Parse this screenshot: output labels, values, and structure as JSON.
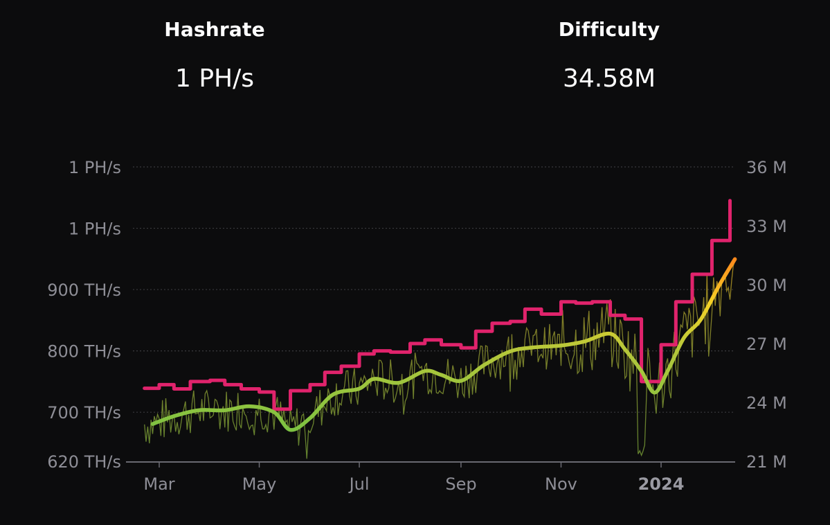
{
  "stats": {
    "hashrate": {
      "label": "Hashrate",
      "value": "1 PH/s"
    },
    "difficulty": {
      "label": "Difficulty",
      "value": "34.58M"
    }
  },
  "colors": {
    "background": "#0c0c0d",
    "hashrate_line": "#e0236c",
    "difficulty_low": "#7dc242",
    "difficulty_mid": "#f5d327",
    "difficulty_high": "#ff7a1a",
    "raw_low": "#6e8f32",
    "raw_high": "#c8961a",
    "grid": "#3a3a3e",
    "axis": "#6a6a72",
    "tick_text": "#8e8e96"
  },
  "chart_data": {
    "type": "line",
    "title": "",
    "grid": "horizontal-dotted",
    "x_range": [
      "2023-02-20",
      "2024-02-15"
    ],
    "x_ticks": [
      {
        "label": "Mar",
        "date": "2023-03-01",
        "bold": false
      },
      {
        "label": "May",
        "date": "2023-05-01",
        "bold": false
      },
      {
        "label": "Jul",
        "date": "2023-07-01",
        "bold": false
      },
      {
        "label": "Sep",
        "date": "2023-09-01",
        "bold": false
      },
      {
        "label": "Nov",
        "date": "2023-11-01",
        "bold": false
      },
      {
        "label": "2024",
        "date": "2024-01-01",
        "bold": true
      }
    ],
    "left_axis": {
      "unit": "TH/s",
      "range": [
        620,
        1100
      ],
      "ticks": [
        {
          "value": 1100,
          "label": "1 PH/s"
        },
        {
          "value": 1000,
          "label": "1 PH/s"
        },
        {
          "value": 900,
          "label": "900 TH/s"
        },
        {
          "value": 800,
          "label": "800 TH/s"
        },
        {
          "value": 700,
          "label": "700 TH/s"
        },
        {
          "value": 620,
          "label": "620 TH/s"
        }
      ]
    },
    "right_axis": {
      "unit": "M",
      "range": [
        21,
        36
      ],
      "ticks": [
        {
          "value": 36,
          "label": "36 M"
        },
        {
          "value": 33,
          "label": "33 M"
        },
        {
          "value": 30,
          "label": "30 M"
        },
        {
          "value": 27,
          "label": "27 M"
        },
        {
          "value": 24,
          "label": "24 M"
        },
        {
          "value": 21,
          "label": "21 M"
        }
      ]
    },
    "series": [
      {
        "axis": "left",
        "style": "step",
        "color": "#e0236c",
        "points": [
          [
            "2023-02-20",
            739
          ],
          [
            "2023-03-01",
            745
          ],
          [
            "2023-03-10",
            738
          ],
          [
            "2023-03-20",
            750
          ],
          [
            "2023-04-01",
            752
          ],
          [
            "2023-04-10",
            745
          ],
          [
            "2023-04-20",
            738
          ],
          [
            "2023-05-01",
            733
          ],
          [
            "2023-05-10",
            705
          ],
          [
            "2023-05-20",
            735
          ],
          [
            "2023-06-01",
            745
          ],
          [
            "2023-06-10",
            765
          ],
          [
            "2023-06-20",
            775
          ],
          [
            "2023-07-01",
            795
          ],
          [
            "2023-07-10",
            800
          ],
          [
            "2023-07-20",
            798
          ],
          [
            "2023-08-01",
            812
          ],
          [
            "2023-08-10",
            818
          ],
          [
            "2023-08-20",
            810
          ],
          [
            "2023-09-01",
            805
          ],
          [
            "2023-09-10",
            832
          ],
          [
            "2023-09-20",
            845
          ],
          [
            "2023-10-01",
            848
          ],
          [
            "2023-10-10",
            868
          ],
          [
            "2023-10-20",
            860
          ],
          [
            "2023-11-01",
            880
          ],
          [
            "2023-11-10",
            878
          ],
          [
            "2023-11-20",
            880
          ],
          [
            "2023-12-01",
            858
          ],
          [
            "2023-12-10",
            852
          ],
          [
            "2023-12-20",
            750
          ],
          [
            "2024-01-01",
            810
          ],
          [
            "2024-01-10",
            880
          ],
          [
            "2024-01-20",
            925
          ],
          [
            "2024-02-01",
            980
          ],
          [
            "2024-02-12",
            1045
          ]
        ]
      },
      {
        "axis": "right",
        "style": "smooth-gradient",
        "points": [
          [
            "2023-02-25",
            22.9
          ],
          [
            "2023-03-10",
            23.3
          ],
          [
            "2023-03-25",
            23.6
          ],
          [
            "2023-04-10",
            23.6
          ],
          [
            "2023-04-25",
            23.8
          ],
          [
            "2023-05-10",
            23.5
          ],
          [
            "2023-05-20",
            22.6
          ],
          [
            "2023-06-01",
            23.2
          ],
          [
            "2023-06-15",
            24.4
          ],
          [
            "2023-07-01",
            24.7
          ],
          [
            "2023-07-10",
            25.2
          ],
          [
            "2023-07-25",
            25.0
          ],
          [
            "2023-08-10",
            25.6
          ],
          [
            "2023-08-20",
            25.4
          ],
          [
            "2023-09-01",
            25.1
          ],
          [
            "2023-09-15",
            25.9
          ],
          [
            "2023-10-01",
            26.6
          ],
          [
            "2023-10-15",
            26.8
          ],
          [
            "2023-11-01",
            26.9
          ],
          [
            "2023-11-15",
            27.1
          ],
          [
            "2023-12-01",
            27.5
          ],
          [
            "2023-12-10",
            26.7
          ],
          [
            "2023-12-20",
            25.6
          ],
          [
            "2023-12-28",
            24.5
          ],
          [
            "2024-01-05",
            25.6
          ],
          [
            "2024-01-15",
            27.3
          ],
          [
            "2024-01-25",
            28.2
          ],
          [
            "2024-02-05",
            29.9
          ],
          [
            "2024-02-15",
            31.3
          ]
        ]
      },
      {
        "axis": "right",
        "style": "raw-noisy",
        "range_hint": [
          21.2,
          31.8
        ]
      }
    ]
  }
}
